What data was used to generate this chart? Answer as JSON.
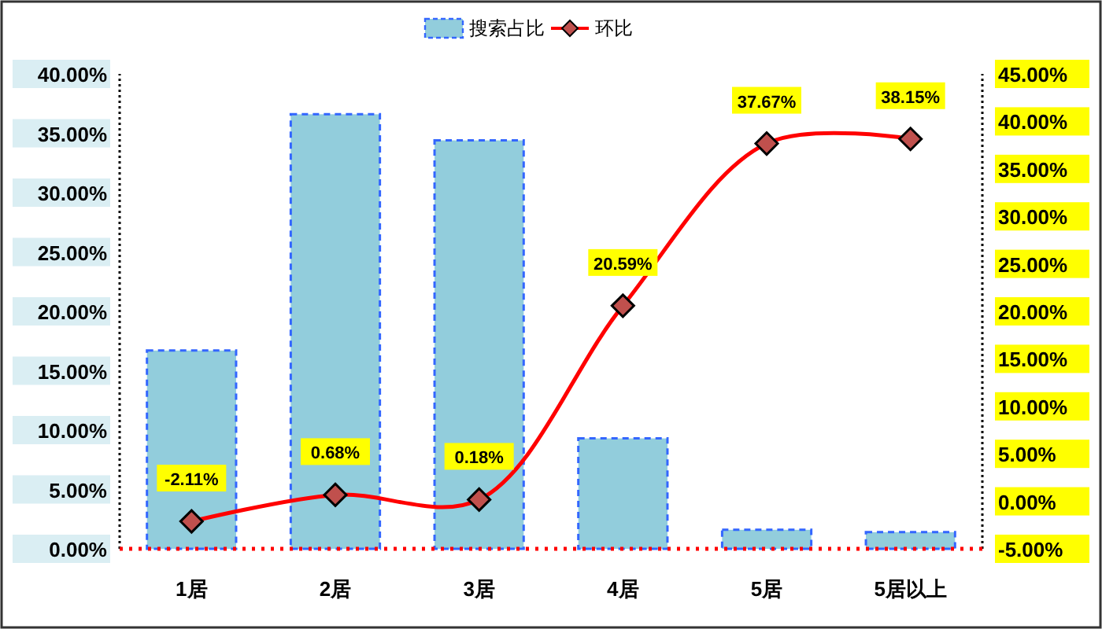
{
  "chart_data": {
    "type": "bar",
    "categories": [
      "1居",
      "2居",
      "3居",
      "4居",
      "5居",
      "5居以上"
    ],
    "series": [
      {
        "name": "搜索占比",
        "color": "#92cddc",
        "values": [
          16.7,
          36.6,
          34.4,
          9.3,
          1.6,
          1.4
        ]
      },
      {
        "name": "环比",
        "type": "line",
        "axis": "y2",
        "color": "#ff0000",
        "marker": "diamond",
        "values": [
          -2.11,
          0.68,
          0.18,
          20.59,
          37.67,
          38.15
        ],
        "value_labels": [
          "-2.11%",
          "0.68%",
          "0.18%",
          "20.59%",
          "37.67%",
          "38.15%"
        ]
      }
    ],
    "ylim": [
      0,
      40
    ],
    "yticks": [
      {
        "value": 0,
        "label": "0.00%"
      },
      {
        "value": 5,
        "label": "5.00%"
      },
      {
        "value": 10,
        "label": "10.00%"
      },
      {
        "value": 15,
        "label": "15.00%"
      },
      {
        "value": 20,
        "label": "20.00%"
      },
      {
        "value": 25,
        "label": "25.00%"
      },
      {
        "value": 30,
        "label": "30.00%"
      },
      {
        "value": 35,
        "label": "35.00%"
      },
      {
        "value": 40,
        "label": "40.00%"
      }
    ],
    "y2lim": [
      -5,
      45
    ],
    "y2ticks": [
      {
        "value": -5,
        "label": "-5.00%"
      },
      {
        "value": 0,
        "label": "0.00%"
      },
      {
        "value": 5,
        "label": "5.00%"
      },
      {
        "value": 10,
        "label": "10.00%"
      },
      {
        "value": 15,
        "label": "15.00%"
      },
      {
        "value": 20,
        "label": "20.00%"
      },
      {
        "value": 25,
        "label": "25.00%"
      },
      {
        "value": 30,
        "label": "30.00%"
      },
      {
        "value": 35,
        "label": "35.00%"
      },
      {
        "value": 40,
        "label": "40.00%"
      },
      {
        "value": 45,
        "label": "45.00%"
      }
    ],
    "legend": "top",
    "grid": false
  }
}
